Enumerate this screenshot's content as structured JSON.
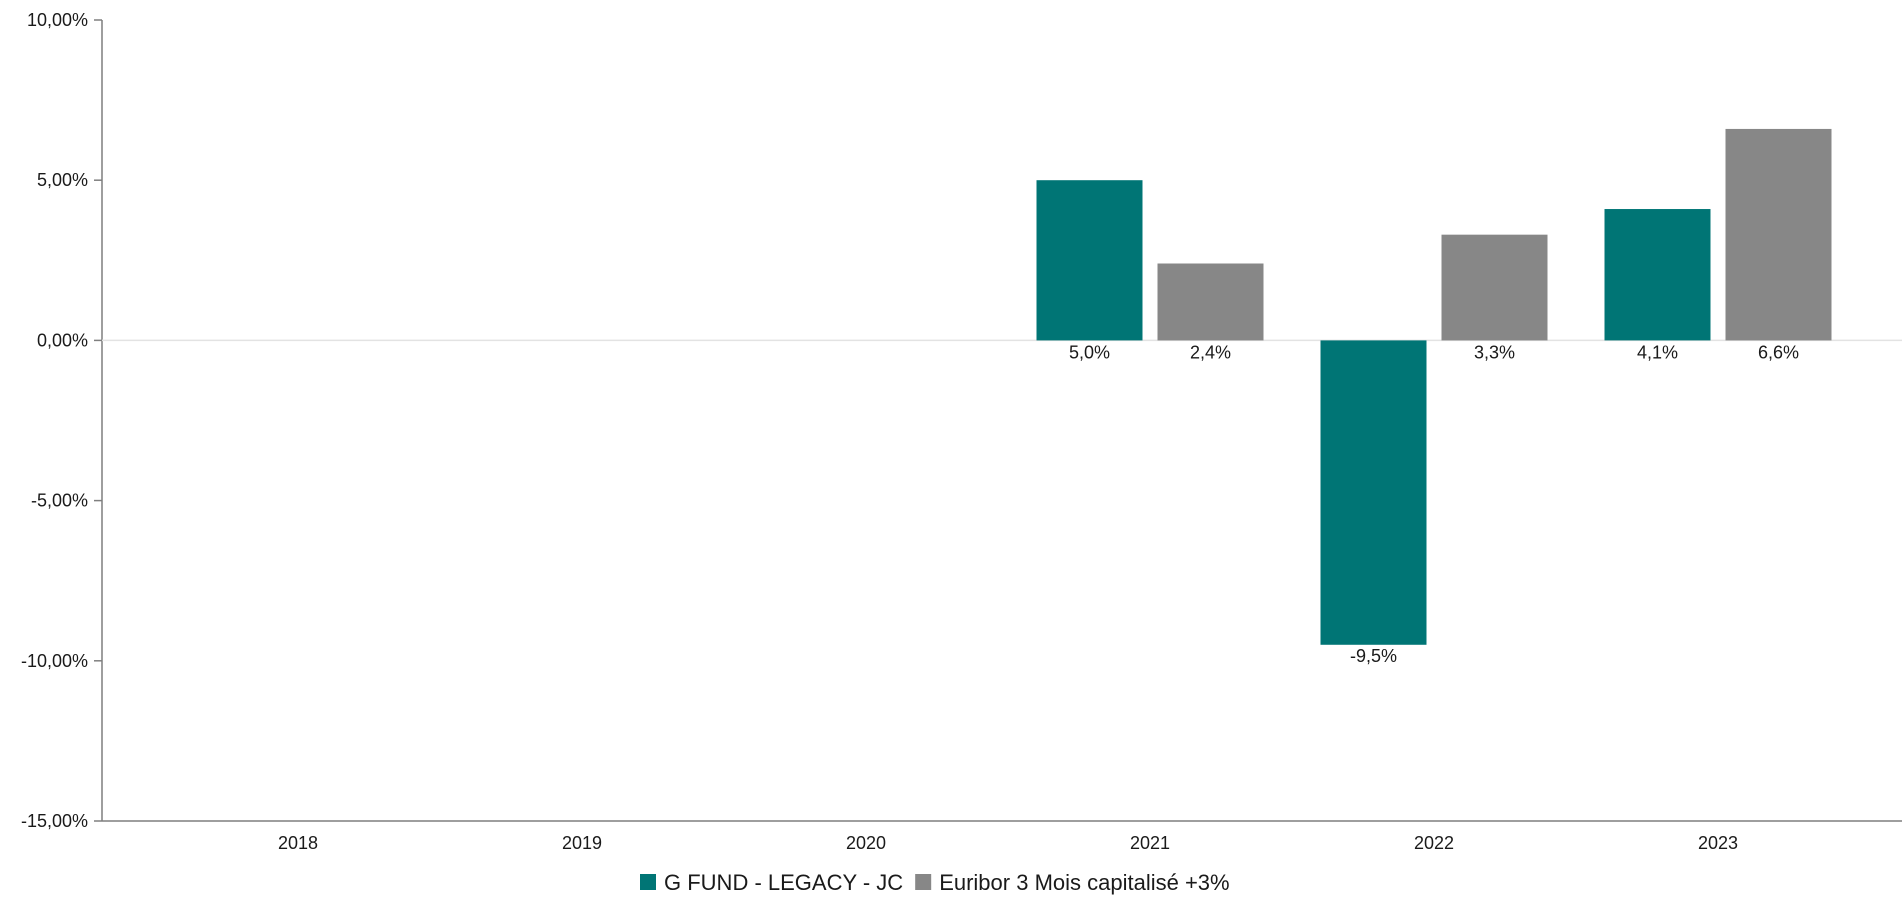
{
  "chart_data": {
    "type": "bar",
    "categories": [
      "2018",
      "2019",
      "2020",
      "2021",
      "2022",
      "2023"
    ],
    "series": [
      {
        "name": "G FUND - LEGACY - JC",
        "color": "#007575",
        "values": [
          null,
          null,
          null,
          5.0,
          -9.5,
          4.1
        ],
        "labels": [
          "",
          "",
          "",
          "5,0%",
          "-9,5%",
          "4,1%"
        ]
      },
      {
        "name": "Euribor 3 Mois capitalisé +3%",
        "color": "#878787",
        "values": [
          null,
          null,
          null,
          2.4,
          3.3,
          6.6
        ],
        "labels": [
          "",
          "",
          "",
          "2,4%",
          "3,3%",
          "6,6%"
        ]
      }
    ],
    "ylim": [
      -15,
      10
    ],
    "yticks": [
      10,
      5,
      0,
      -5,
      -10,
      -15
    ],
    "ytick_labels": [
      "10,00%",
      "5,00%",
      "0,00%",
      "-5,00%",
      "-10,00%",
      "-15,00%"
    ],
    "legend_position": "bottom",
    "grid": false
  }
}
